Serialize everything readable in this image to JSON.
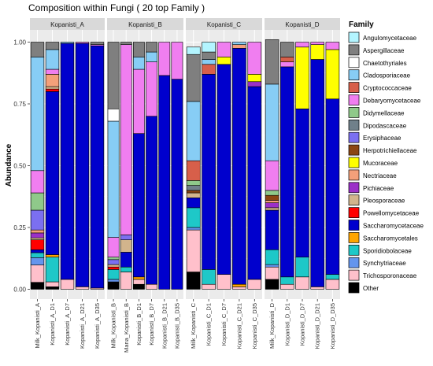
{
  "chart_data": {
    "type": "bar",
    "title": "Composition within Fungi ( 20 top Family )",
    "ylabel": "Abundance",
    "xlabel": "",
    "ylim": [
      0,
      1
    ],
    "y_ticks": [
      "0.00",
      "0.25",
      "0.50",
      "0.75",
      "1.00"
    ],
    "legend_title": "Family",
    "legend_position": "right",
    "grid": true,
    "panels": [
      {
        "name": "Kopanisti_A",
        "samples": [
          "Milk_Kopanisti_A",
          "Kopanisti_A_D1",
          "Kopanisti_A_D7",
          "Kopanisti_A_D21",
          "Kopanisti_A_D35"
        ]
      },
      {
        "name": "Kopanisti_B",
        "samples": [
          "Milk_Kopanisti_B",
          "Mana_Kopanisti_B",
          "Kopanisti_B_D1",
          "Kopanisti_B_D7",
          "Kopanisti_B_D21",
          "Kopanisti_B_D35"
        ]
      },
      {
        "name": "Kopanisti_C",
        "samples": [
          "Milk_Kopanisti_C",
          "Kopanisti_C_D1",
          "Kopanisti_C_D7",
          "Kopanisti_C_D21",
          "Kopanisti_C_D35"
        ]
      },
      {
        "name": "Kopanisti_D",
        "samples": [
          "Milk_Kopanisti_D",
          "Kopanisti_D_D1",
          "Kopanisti_D_D7",
          "Kopanisti_D_D21",
          "Kopanisti_D_D35"
        ]
      }
    ],
    "families": [
      {
        "name": "Angulomycetaceae",
        "color": "#b3f5ff"
      },
      {
        "name": "Aspergillaceae",
        "color": "#7f7f7f"
      },
      {
        "name": "Chaetothyriales",
        "color": "#ffffff"
      },
      {
        "name": "Cladosporiaceae",
        "color": "#87cdf5"
      },
      {
        "name": "Cryptococcaceae",
        "color": "#d75f4a"
      },
      {
        "name": "Debaryomycetaceae",
        "color": "#f07ef0"
      },
      {
        "name": "Didymellaceae",
        "color": "#8fc98a"
      },
      {
        "name": "Dipodascaceae",
        "color": "#70808a"
      },
      {
        "name": "Erysiphaceae",
        "color": "#7b6ff0"
      },
      {
        "name": "Herpotrichiellaceae",
        "color": "#8b4513"
      },
      {
        "name": "Mucoraceae",
        "color": "#ffff00"
      },
      {
        "name": "Nectriaceae",
        "color": "#f4a07a"
      },
      {
        "name": "Pichiaceae",
        "color": "#9b30c8"
      },
      {
        "name": "Pleosporaceae",
        "color": "#d2b48c"
      },
      {
        "name": "Powellomycetaceae",
        "color": "#ff0000"
      },
      {
        "name": "Saccharomycetaceae",
        "color": "#0000cd"
      },
      {
        "name": "Saccharomycetales",
        "color": "#ffa500"
      },
      {
        "name": "Sporidiobolaceae",
        "color": "#1ec8c8"
      },
      {
        "name": "Synchytriaceae",
        "color": "#6495ed"
      },
      {
        "name": "Trichosporonaceae",
        "color": "#ffc0cb"
      },
      {
        "name": "Other",
        "color": "#000000"
      }
    ],
    "series": [
      {
        "sample": "Milk_Kopanisti_A",
        "values": {
          "Other": 0.028,
          "Trichosporonaceae": 0.07,
          "Synchytriaceae": 0.03,
          "Sporidiobolaceae": 0.02,
          "Saccharomycetaceae": 0.012,
          "Powellomycetaceae": 0.04,
          "Pleosporaceae": 0.008,
          "Pichiaceae": 0.02,
          "Erysiphaceae": 0.08,
          "Didymellaceae": 0.07,
          "Debaryomycetaceae": 0.09,
          "Nectriaceae": 0.012,
          "Cladosporiaceae": 0.46,
          "Aspergillaceae": 0.06
        }
      },
      {
        "sample": "Kopanisti_A_D1",
        "values": {
          "Other": 0.01,
          "Trichosporonaceae": 0.02,
          "Sporidiobolaceae": 0.1,
          "Saccharomycetaceae": 0.66,
          "Nectriaceae": 0.05,
          "Pleosporaceae": 0.01,
          "Debaryomycetaceae": 0.02,
          "Powellomycetaceae": 0.01,
          "Saccharomycetales": 0.01,
          "Cladosporiaceae": 0.08,
          "Aspergillaceae": 0.03
        }
      },
      {
        "sample": "Kopanisti_A_D7",
        "values": {
          "Trichosporonaceae": 0.04,
          "Saccharomycetaceae": 0.955,
          "Cladosporiaceae": 0.005
        }
      },
      {
        "sample": "Kopanisti_A_D21",
        "values": {
          "Trichosporonaceae": 0.01,
          "Saccharomycetaceae": 0.985,
          "Debaryomycetaceae": 0.005
        }
      },
      {
        "sample": "Kopanisti_A_D35",
        "values": {
          "Trichosporonaceae": 0.005,
          "Saccharomycetaceae": 0.98,
          "Debaryomycetaceae": 0.005,
          "Aspergillaceae": 0.01
        }
      },
      {
        "sample": "Milk_Kopanisti_B",
        "values": {
          "Other": 0.03,
          "Sporidiobolaceae": 0.04,
          "Synchytriaceae": 0.01,
          "Pleosporaceae": 0.01,
          "Powellomycetaceae": 0.01,
          "Erysiphaceae": 0.02,
          "Debaryomycetaceae": 0.08,
          "Didymellaceae": 0.01,
          "Cladosporiaceae": 0.47,
          "Chaetothyriales": 0.05,
          "Aspergillaceae": 0.27
        }
      },
      {
        "sample": "Mana_Kopanisti_B",
        "values": {
          "Trichosporonaceae": 0.07,
          "Sporidiobolaceae": 0.02,
          "Pleosporaceae": 0.05,
          "Erysiphaceae": 0.02,
          "Saccharomycetaceae": 0.06,
          "Debaryomycetaceae": 0.77,
          "Aspergillaceae": 0.01
        }
      },
      {
        "sample": "Kopanisti_B_D1",
        "values": {
          "Other": 0.02,
          "Trichosporonaceae": 0.02,
          "Saccharomycetales": 0.01,
          "Saccharomycetaceae": 0.58,
          "Debaryomycetaceae": 0.26,
          "Cladosporiaceae": 0.05,
          "Aspergillaceae": 0.06
        }
      },
      {
        "sample": "Kopanisti_B_D7",
        "values": {
          "Trichosporonaceae": 0.02,
          "Saccharomycetaceae": 0.68,
          "Debaryomycetaceae": 0.22,
          "Cladosporiaceae": 0.04,
          "Aspergillaceae": 0.04
        }
      },
      {
        "sample": "Kopanisti_B_D21",
        "values": {
          "Saccharomycetaceae": 0.865,
          "Debaryomycetaceae": 0.135
        }
      },
      {
        "sample": "Kopanisti_B_D35",
        "values": {
          "Saccharomycetaceae": 0.85,
          "Debaryomycetaceae": 0.15
        }
      },
      {
        "sample": "Milk_Kopanisti_C",
        "values": {
          "Other": 0.07,
          "Trichosporonaceae": 0.17,
          "Sporidiobolaceae": 0.08,
          "Synchytriaceae": 0.01,
          "Saccharomycetaceae": 0.04,
          "Pleosporaceae": 0.02,
          "Didymellaceae": 0.02,
          "Dipodascaceae": 0.02,
          "Cryptococcaceae": 0.08,
          "Herpotrichiellaceae": 0.01,
          "Cladosporiaceae": 0.24,
          "Aspergillaceae": 0.19,
          "Angulomycetaceae": 0.03
        }
      },
      {
        "sample": "Kopanisti_C_D1",
        "values": {
          "Trichosporonaceae": 0.02,
          "Sporidiobolaceae": 0.06,
          "Saccharomycetaceae": 0.79,
          "Cladosporiaceae": 0.02,
          "Cryptococcaceae": 0.04,
          "Aspergillaceae": 0.03,
          "Angulomycetaceae": 0.04
        }
      },
      {
        "sample": "Kopanisti_C_D7",
        "values": {
          "Trichosporonaceae": 0.06,
          "Saccharomycetaceae": 0.85,
          "Mucoraceae": 0.03,
          "Debaryomycetaceae": 0.06
        }
      },
      {
        "sample": "Kopanisti_C_D21",
        "values": {
          "Trichosporonaceae": 0.01,
          "Saccharomycetaceae": 0.955,
          "Saccharomycetales": 0.01,
          "Nectriaceae": 0.015,
          "Cladosporiaceae": 0.01
        }
      },
      {
        "sample": "Kopanisti_C_D35",
        "values": {
          "Trichosporonaceae": 0.04,
          "Saccharomycetaceae": 0.78,
          "Pichiaceae": 0.02,
          "Mucoraceae": 0.03,
          "Debaryomycetaceae": 0.13
        }
      },
      {
        "sample": "Milk_Kopanisti_D",
        "values": {
          "Other": 0.04,
          "Trichosporonaceae": 0.05,
          "Sporidiobolaceae": 0.06,
          "Synchytriaceae": 0.01,
          "Saccharomycetaceae": 0.16,
          "Pichiaceae": 0.02,
          "Pleosporaceae": 0.01,
          "Herpotrichiellaceae": 0.02,
          "Debaryomycetaceae": 0.12,
          "Didymellaceae": 0.02,
          "Nectriaceae": 0.01,
          "Cladosporiaceae": 0.31,
          "Aspergillaceae": 0.18
        }
      },
      {
        "sample": "Kopanisti_D_D1",
        "values": {
          "Trichosporonaceae": 0.02,
          "Sporidiobolaceae": 0.03,
          "Saccharomycetaceae": 0.85,
          "Cryptococcaceae": 0.02,
          "Debaryomycetaceae": 0.02,
          "Aspergillaceae": 0.06
        }
      },
      {
        "sample": "Kopanisti_D_D7",
        "values": {
          "Trichosporonaceae": 0.05,
          "Sporidiobolaceae": 0.08,
          "Saccharomycetaceae": 0.6,
          "Mucoraceae": 0.25,
          "Debaryomycetaceae": 0.02
        }
      },
      {
        "sample": "Kopanisti_D_D21",
        "values": {
          "Trichosporonaceae": 0.01,
          "Saccharomycetaceae": 0.92,
          "Mucoraceae": 0.06,
          "Debaryomycetaceae": 0.01
        }
      },
      {
        "sample": "Kopanisti_D_D35",
        "values": {
          "Trichosporonaceae": 0.04,
          "Sporidiobolaceae": 0.02,
          "Saccharomycetaceae": 0.71,
          "Mucoraceae": 0.2,
          "Debaryomycetaceae": 0.03
        }
      }
    ]
  }
}
